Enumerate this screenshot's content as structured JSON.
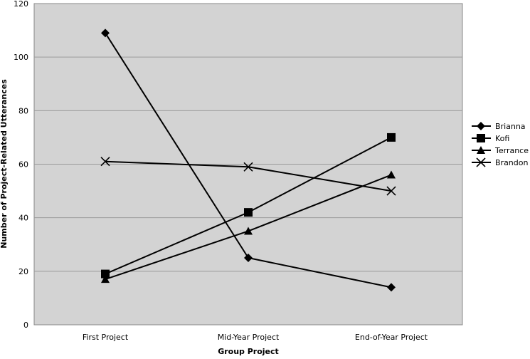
{
  "chart_data": {
    "type": "line",
    "categories": [
      "First Project",
      "Mid-Year Project",
      "End-of-Year Project"
    ],
    "series": [
      {
        "name": "Brianna",
        "values": [
          109,
          25,
          14
        ],
        "marker": "diamond"
      },
      {
        "name": "Kofi",
        "values": [
          19,
          42,
          70
        ],
        "marker": "square"
      },
      {
        "name": "Terrance",
        "values": [
          17,
          35,
          56
        ],
        "marker": "triangle"
      },
      {
        "name": "Brandon",
        "values": [
          61,
          59,
          50
        ],
        "marker": "x"
      }
    ],
    "xlabel": "Group Project",
    "ylabel": "Number of Project-Related Utterances",
    "ylim": [
      0,
      120
    ],
    "yticks": [
      0,
      20,
      40,
      60,
      80,
      100,
      120
    ],
    "grid": true,
    "legend": "right",
    "colors": {
      "plot_background": "#d3d3d3",
      "gridline": "#9a9a9a",
      "series": "#000000"
    }
  }
}
